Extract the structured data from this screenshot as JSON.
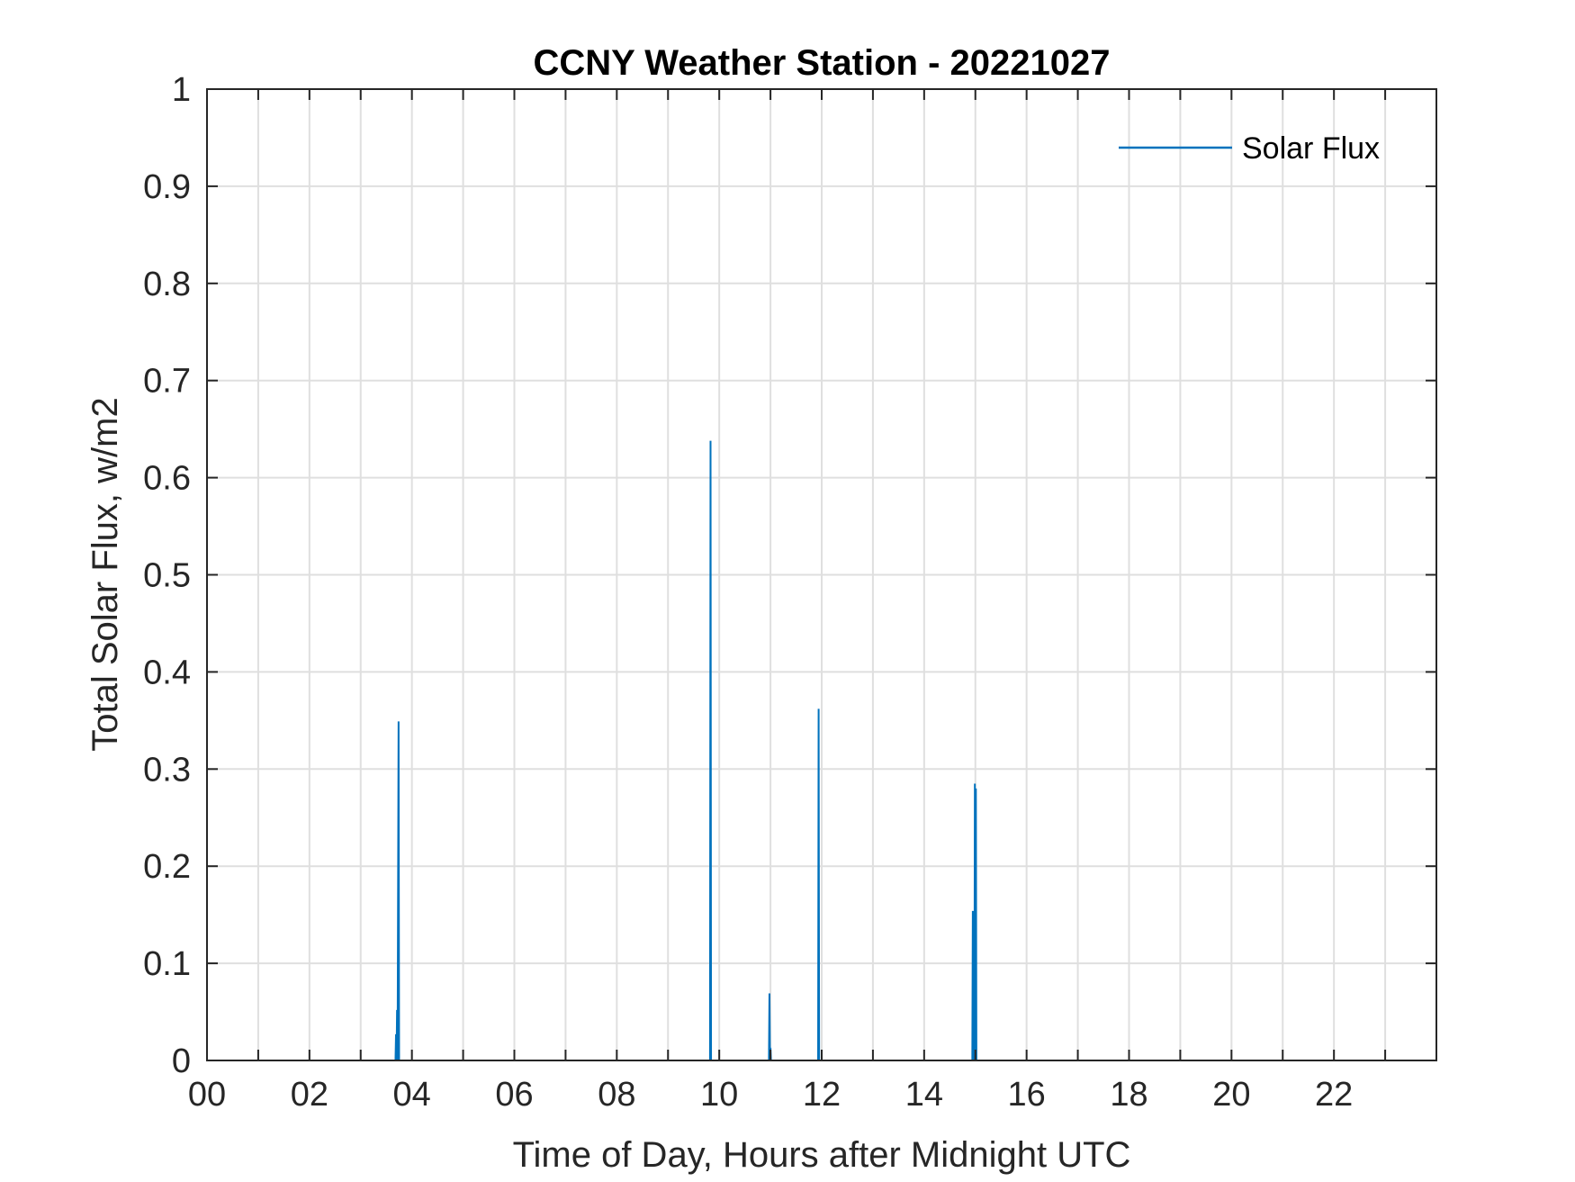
{
  "chart_data": {
    "type": "line",
    "title": "CCNY Weather Station - 20221027",
    "xlabel": "Time of Day, Hours after Midnight UTC",
    "ylabel": "Total Solar Flux, w/m2",
    "xlim": [
      0,
      24
    ],
    "ylim": [
      0,
      1
    ],
    "x_ticks": [
      0,
      2,
      4,
      6,
      8,
      10,
      12,
      14,
      16,
      18,
      20,
      22
    ],
    "x_tick_labels": [
      "00",
      "02",
      "04",
      "06",
      "08",
      "10",
      "12",
      "14",
      "16",
      "18",
      "20",
      "22"
    ],
    "x_minor_grid_step": 1,
    "y_ticks": [
      0,
      0.1,
      0.2,
      0.3,
      0.4,
      0.5,
      0.6,
      0.7,
      0.8,
      0.9,
      1
    ],
    "y_tick_labels": [
      "0",
      "0.1",
      "0.2",
      "0.3",
      "0.4",
      "0.5",
      "0.6",
      "0.7",
      "0.8",
      "0.9",
      "1"
    ],
    "grid": true,
    "legend": {
      "placement": "top-right",
      "entries": [
        "Solar Flux"
      ]
    },
    "series": [
      {
        "name": "Solar Flux",
        "color": "#0072BD",
        "points": [
          [
            0,
            0
          ],
          [
            3.68,
            0
          ],
          [
            3.69,
            0.027
          ],
          [
            3.7,
            0
          ],
          [
            3.71,
            0.052
          ],
          [
            3.72,
            0
          ],
          [
            3.74,
            0.349
          ],
          [
            3.75,
            0
          ],
          [
            9.82,
            0
          ],
          [
            9.83,
            0.638
          ],
          [
            9.84,
            0
          ],
          [
            10.97,
            0
          ],
          [
            10.98,
            0.069
          ],
          [
            10.99,
            0
          ],
          [
            11.0,
            0.013
          ],
          [
            11.01,
            0
          ],
          [
            11.93,
            0
          ],
          [
            11.94,
            0.362
          ],
          [
            11.95,
            0
          ],
          [
            14.94,
            0
          ],
          [
            14.95,
            0.154
          ],
          [
            14.96,
            0
          ],
          [
            14.97,
            0.012
          ],
          [
            14.98,
            0
          ],
          [
            14.99,
            0.285
          ],
          [
            15.0,
            0
          ],
          [
            15.01,
            0.28
          ],
          [
            15.02,
            0
          ],
          [
            24,
            0
          ]
        ]
      }
    ]
  }
}
